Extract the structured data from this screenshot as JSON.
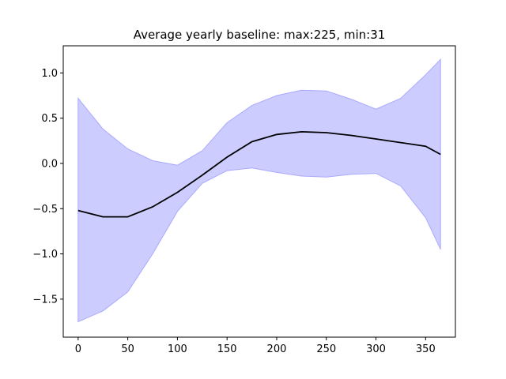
{
  "chart_data": {
    "type": "area",
    "title": "Average yearly baseline: max:225, min:31",
    "xlabel": "",
    "ylabel": "",
    "xlim": [
      -15,
      380
    ],
    "ylim": [
      -1.92,
      1.3
    ],
    "x_ticks": [
      0,
      50,
      100,
      150,
      200,
      250,
      300,
      350
    ],
    "x_tick_labels": [
      "0",
      "50",
      "100",
      "150",
      "200",
      "250",
      "300",
      "350"
    ],
    "y_ticks": [
      -1.5,
      -1.0,
      -0.5,
      0.0,
      0.5,
      1.0
    ],
    "y_tick_labels": [
      "−1.5",
      "−1.0",
      "−0.5",
      "0.0",
      "0.5",
      "1.0"
    ],
    "grid": false,
    "colors": {
      "band_fill": "#ccccff",
      "band_edge": "#aaaaff",
      "line": "#000000"
    },
    "x": [
      0,
      25,
      50,
      75,
      100,
      125,
      150,
      175,
      200,
      225,
      250,
      275,
      300,
      325,
      350,
      365
    ],
    "series": [
      {
        "role": "line",
        "values": [
          -0.52,
          -0.59,
          -0.59,
          -0.48,
          -0.32,
          -0.13,
          0.07,
          0.24,
          0.32,
          0.35,
          0.34,
          0.31,
          0.27,
          0.23,
          0.19,
          0.1
        ]
      },
      {
        "role": "band_upper",
        "values": [
          0.72,
          0.38,
          0.16,
          0.03,
          -0.02,
          0.14,
          0.45,
          0.64,
          0.75,
          0.81,
          0.8,
          0.71,
          0.6,
          0.72,
          0.98,
          1.15
        ]
      },
      {
        "role": "band_lower",
        "values": [
          -1.75,
          -1.63,
          -1.42,
          -1.0,
          -0.53,
          -0.22,
          -0.08,
          -0.05,
          -0.1,
          -0.14,
          -0.15,
          -0.12,
          -0.11,
          -0.25,
          -0.6,
          -0.95
        ]
      }
    ]
  }
}
